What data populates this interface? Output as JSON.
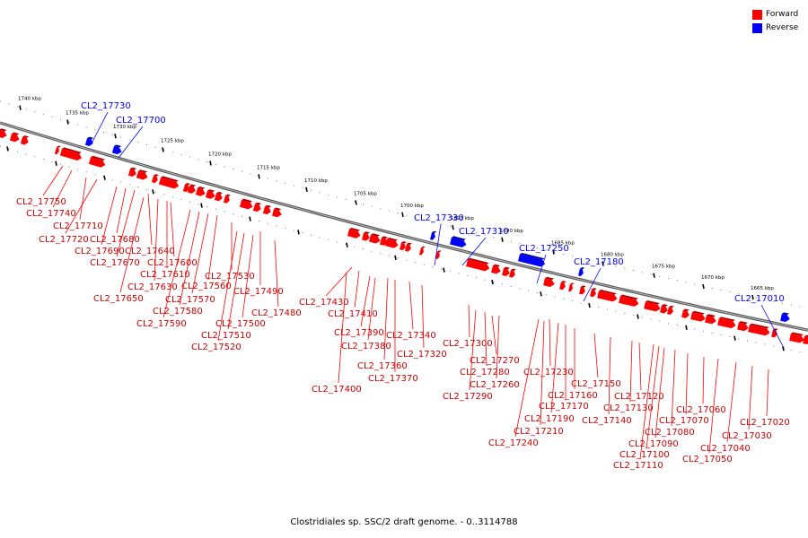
{
  "title": "Clostridiales sp. SSC/2 draft genome. - 0..3114788",
  "legend": [
    {
      "label": "Forward",
      "color": "#ff0000"
    },
    {
      "label": "Reverse",
      "color": "#0000ff"
    }
  ],
  "colors": {
    "forward": "#ff0000",
    "reverse": "#0000ff",
    "backbone": "#808080"
  },
  "ticks": [
    "1740 kbp",
    "1735 kbp",
    "1730 kbp",
    "1725 kbp",
    "1720 kbp",
    "1715 kbp",
    "1710 kbp",
    "1705 kbp",
    "1700 kbp",
    "1695 kbp",
    "1690 kbp",
    "1685 kbp",
    "1680 kbp",
    "1675 kbp",
    "1670 kbp",
    "1665 kbp"
  ],
  "reverse_labels": [
    "CL2_17730",
    "CL2_17700",
    "CL2_17330",
    "CL2_17310",
    "CL2_17250",
    "CL2_17180",
    "CL2_17010"
  ],
  "forward_labels": [
    "CL2_17750",
    "CL2_17740",
    "CL2_17710",
    "CL2_17720",
    "CL2_17680",
    "CL2_17690",
    "CL2_17640",
    "CL2_17670",
    "CL2_17600",
    "CL2_17610",
    "CL2_17650",
    "CL2_17630",
    "CL2_17530",
    "CL2_17560",
    "CL2_17570",
    "CL2_17490",
    "CL2_17580",
    "CL2_17480",
    "CL2_17590",
    "CL2_17500",
    "CL2_17510",
    "CL2_17520",
    "CL2_17430",
    "CL2_17410",
    "CL2_17390",
    "CL2_17340",
    "CL2_17380",
    "CL2_17320",
    "CL2_17360",
    "CL2_17370",
    "CL2_17400",
    "CL2_17300",
    "CL2_17270",
    "CL2_17280",
    "CL2_17230",
    "CL2_17260",
    "CL2_17290",
    "CL2_17150",
    "CL2_17160",
    "CL2_17120",
    "CL2_17170",
    "CL2_17130",
    "CL2_17190",
    "CL2_17140",
    "CL2_17060",
    "CL2_17210",
    "CL2_17070",
    "CL2_17080",
    "CL2_17020",
    "CL2_17240",
    "CL2_17090",
    "CL2_17030",
    "CL2_17040",
    "CL2_17100",
    "CL2_17050",
    "CL2_17110"
  ]
}
